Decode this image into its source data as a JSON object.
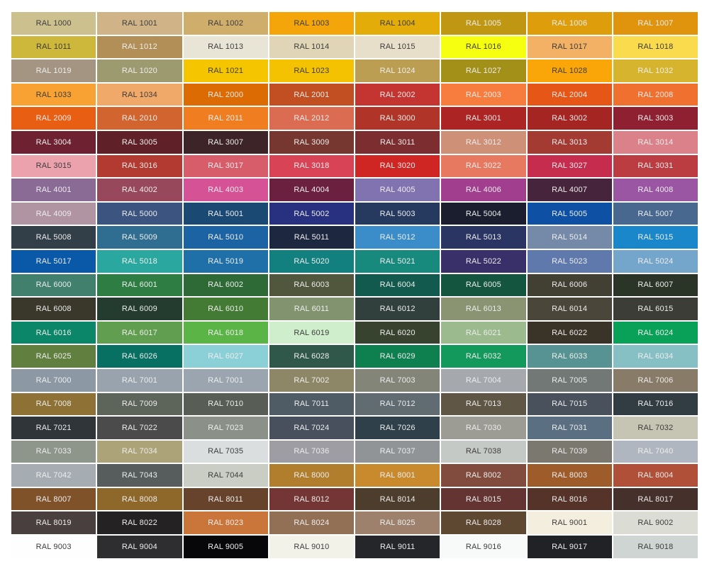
{
  "colors": {
    "background": "#ffffff",
    "dark_text": "#3d3d3d",
    "light_text": "#ededed"
  },
  "chart_data": {
    "type": "table",
    "title": "RAL colour chart",
    "columns": 8,
    "luminance_threshold": 165,
    "light_text_overrides": [
      "1032",
      "6021",
      "6027",
      "6034",
      "7004",
      "7040",
      "7042"
    ],
    "rows": [
      [
        {
          "label": "RAL 1000",
          "hex": "#CBC08E"
        },
        {
          "label": "RAL 1001",
          "hex": "#D0B487"
        },
        {
          "label": "RAL 1002",
          "hex": "#CFAD6B"
        },
        {
          "label": "RAL 1003",
          "hex": "#F3A50A"
        },
        {
          "label": "RAL 1004",
          "hex": "#E3AC09"
        },
        {
          "label": "RAL 1005",
          "hex": "#BF9713"
        },
        {
          "label": "RAL 1006",
          "hex": "#DE9D0B"
        },
        {
          "label": "RAL 1007",
          "hex": "#E0940E"
        }
      ],
      [
        {
          "label": "RAL 1011",
          "hex": "#CDB83C"
        },
        {
          "label": "RAL 1012",
          "hex": "#B18F57"
        },
        {
          "label": "RAL 1013",
          "hex": "#E9E5D6"
        },
        {
          "label": "RAL 1014",
          "hex": "#E0D5B6"
        },
        {
          "label": "RAL 1015",
          "hex": "#E7DFCA"
        },
        {
          "label": "RAL 1016",
          "hex": "#F6FF0F"
        },
        {
          "label": "RAL 1017",
          "hex": "#F2B164"
        },
        {
          "label": "RAL 1018",
          "hex": "#FADB4E"
        }
      ],
      [
        {
          "label": "RAL 1019",
          "hex": "#A39581"
        },
        {
          "label": "RAL 1020",
          "hex": "#9C9A6E"
        },
        {
          "label": "RAL 1021",
          "hex": "#F5C500"
        },
        {
          "label": "RAL 1023",
          "hex": "#F4C200"
        },
        {
          "label": "RAL 1024",
          "hex": "#BB9E52"
        },
        {
          "label": "RAL 1027",
          "hex": "#A29018"
        },
        {
          "label": "RAL 1028",
          "hex": "#FBA608"
        },
        {
          "label": "RAL 1032",
          "hex": "#D6B42D"
        }
      ],
      [
        {
          "label": "RAL 1033",
          "hex": "#F8A233"
        },
        {
          "label": "RAL 1034",
          "hex": "#F0A969"
        },
        {
          "label": "RAL 2000",
          "hex": "#DC6B04"
        },
        {
          "label": "RAL 2001",
          "hex": "#C14F22"
        },
        {
          "label": "RAL 2002",
          "hex": "#C43430"
        },
        {
          "label": "RAL 2003",
          "hex": "#F67D3D"
        },
        {
          "label": "RAL 2004",
          "hex": "#E65617"
        },
        {
          "label": "RAL 2008",
          "hex": "#F0712F"
        }
      ],
      [
        {
          "label": "RAL 2009",
          "hex": "#E85E12"
        },
        {
          "label": "RAL 2010",
          "hex": "#D26430"
        },
        {
          "label": "RAL 2011",
          "hex": "#F07E20"
        },
        {
          "label": "RAL 2012",
          "hex": "#DB6B51"
        },
        {
          "label": "RAL 3000",
          "hex": "#B03528"
        },
        {
          "label": "RAL 3001",
          "hex": "#AC2423"
        },
        {
          "label": "RAL 3002",
          "hex": "#A52523"
        },
        {
          "label": "RAL 3003",
          "hex": "#8F2031"
        }
      ],
      [
        {
          "label": "RAL 3004",
          "hex": "#6E2231"
        },
        {
          "label": "RAL 3005",
          "hex": "#5F2028"
        },
        {
          "label": "RAL 3007",
          "hex": "#3D2428"
        },
        {
          "label": "RAL 3009",
          "hex": "#763730"
        },
        {
          "label": "RAL 3011",
          "hex": "#7C2D2F"
        },
        {
          "label": "RAL 3012",
          "hex": "#CE9077"
        },
        {
          "label": "RAL 3013",
          "hex": "#A43B33"
        },
        {
          "label": "RAL 3014",
          "hex": "#DA8189"
        }
      ],
      [
        {
          "label": "RAL 3015",
          "hex": "#ECA2AD"
        },
        {
          "label": "RAL 3016",
          "hex": "#B23A30"
        },
        {
          "label": "RAL 3017",
          "hex": "#D75D6B"
        },
        {
          "label": "RAL 3018",
          "hex": "#D94356"
        },
        {
          "label": "RAL 3020",
          "hex": "#D02623"
        },
        {
          "label": "RAL 3022",
          "hex": "#E6795F"
        },
        {
          "label": "RAL 3027",
          "hex": "#C52C4D"
        },
        {
          "label": "RAL 3031",
          "hex": "#BB3D42"
        }
      ],
      [
        {
          "label": "RAL 4001",
          "hex": "#8A6B96"
        },
        {
          "label": "RAL 4002",
          "hex": "#97485B"
        },
        {
          "label": "RAL 4003",
          "hex": "#D45295"
        },
        {
          "label": "RAL 4004",
          "hex": "#6B2040"
        },
        {
          "label": "RAL 4005",
          "hex": "#8173B0"
        },
        {
          "label": "RAL 4006",
          "hex": "#A23E8E"
        },
        {
          "label": "RAL 4007",
          "hex": "#46253C"
        },
        {
          "label": "RAL 4008",
          "hex": "#9A55A3"
        }
      ],
      [
        {
          "label": "RAL 4009",
          "hex": "#B094A2"
        },
        {
          "label": "RAL 5000",
          "hex": "#3C5480"
        },
        {
          "label": "RAL 5001",
          "hex": "#1A4A73"
        },
        {
          "label": "RAL 5002",
          "hex": "#28317F"
        },
        {
          "label": "RAL 5003",
          "hex": "#263A60"
        },
        {
          "label": "RAL 5004",
          "hex": "#1A1E2E"
        },
        {
          "label": "RAL 5005",
          "hex": "#0E51A4"
        },
        {
          "label": "RAL 5007",
          "hex": "#49688F"
        }
      ],
      [
        {
          "label": "RAL 5008",
          "hex": "#323E48"
        },
        {
          "label": "RAL 5009",
          "hex": "#2F6E91"
        },
        {
          "label": "RAL 5010",
          "hex": "#1B63A3"
        },
        {
          "label": "RAL 5011",
          "hex": "#1D2840"
        },
        {
          "label": "RAL 5012",
          "hex": "#3A8DC9"
        },
        {
          "label": "RAL 5013",
          "hex": "#2A3563"
        },
        {
          "label": "RAL 5014",
          "hex": "#7589A8"
        },
        {
          "label": "RAL 5015",
          "hex": "#1A87CB"
        }
      ],
      [
        {
          "label": "RAL 5017",
          "hex": "#0A58A8"
        },
        {
          "label": "RAL 5018",
          "hex": "#2AA79E"
        },
        {
          "label": "RAL 5019",
          "hex": "#1F70A8"
        },
        {
          "label": "RAL 5020",
          "hex": "#12807E"
        },
        {
          "label": "RAL 5021",
          "hex": "#17897D"
        },
        {
          "label": "RAL 5022",
          "hex": "#39306A"
        },
        {
          "label": "RAL 5023",
          "hex": "#6079AC"
        },
        {
          "label": "RAL 5024",
          "hex": "#74A6CC"
        }
      ],
      [
        {
          "label": "RAL 6000",
          "hex": "#40806D"
        },
        {
          "label": "RAL 6001",
          "hex": "#2E7E44"
        },
        {
          "label": "RAL 6002",
          "hex": "#2D6A35"
        },
        {
          "label": "RAL 6003",
          "hex": "#50573C"
        },
        {
          "label": "RAL 6004",
          "hex": "#12594E"
        },
        {
          "label": "RAL 6005",
          "hex": "#14553F"
        },
        {
          "label": "RAL 6006",
          "hex": "#423F33"
        },
        {
          "label": "RAL 6007",
          "hex": "#2A3527"
        }
      ],
      [
        {
          "label": "RAL 6008",
          "hex": "#39382B"
        },
        {
          "label": "RAL 6009",
          "hex": "#243B2F"
        },
        {
          "label": "RAL 6010",
          "hex": "#437A34"
        },
        {
          "label": "RAL 6011",
          "hex": "#81946F"
        },
        {
          "label": "RAL 6012",
          "hex": "#32403D"
        },
        {
          "label": "RAL 6013",
          "hex": "#8A9372"
        },
        {
          "label": "RAL 6014",
          "hex": "#4A463A"
        },
        {
          "label": "RAL 6015",
          "hex": "#3B3D36"
        }
      ],
      [
        {
          "label": "RAL 6016",
          "hex": "#0B8668"
        },
        {
          "label": "RAL 6017",
          "hex": "#619E50"
        },
        {
          "label": "RAL 6018",
          "hex": "#5BB446"
        },
        {
          "label": "RAL 6019",
          "hex": "#CFEECB"
        },
        {
          "label": "RAL 6020",
          "hex": "#37422F"
        },
        {
          "label": "RAL 6021",
          "hex": "#9BBA8D"
        },
        {
          "label": "RAL 6022",
          "hex": "#3A3327"
        },
        {
          "label": "RAL 6024",
          "hex": "#09A057"
        }
      ],
      [
        {
          "label": "RAL 6025",
          "hex": "#61803F"
        },
        {
          "label": "RAL 6026",
          "hex": "#086F63"
        },
        {
          "label": "RAL 6027",
          "hex": "#8BD0D6"
        },
        {
          "label": "RAL 6028",
          "hex": "#30584A"
        },
        {
          "label": "RAL 6029",
          "hex": "#0E7F4F"
        },
        {
          "label": "RAL 6032",
          "hex": "#13995C"
        },
        {
          "label": "RAL 6033",
          "hex": "#579392"
        },
        {
          "label": "RAL 6034",
          "hex": "#86C0C5"
        }
      ],
      [
        {
          "label": "RAL 7000",
          "hex": "#8C99A4"
        },
        {
          "label": "RAL 7001",
          "hex": "#99A3AD"
        },
        {
          "label": "RAL 7001",
          "hex": "#9AA5AF"
        },
        {
          "label": "RAL 7002",
          "hex": "#8D8767"
        },
        {
          "label": "RAL 7003",
          "hex": "#838579"
        },
        {
          "label": "RAL 7004",
          "hex": "#A5A8AD"
        },
        {
          "label": "RAL 7005",
          "hex": "#717876"
        },
        {
          "label": "RAL 7006",
          "hex": "#887C68"
        }
      ],
      [
        {
          "label": "RAL 7008",
          "hex": "#8E7135"
        },
        {
          "label": "RAL 7009",
          "hex": "#5D645A"
        },
        {
          "label": "RAL 7010",
          "hex": "#585D56"
        },
        {
          "label": "RAL 7011",
          "hex": "#4F5B65"
        },
        {
          "label": "RAL 7012",
          "hex": "#606B72"
        },
        {
          "label": "RAL 7013",
          "hex": "#5F5645"
        },
        {
          "label": "RAL 7015",
          "hex": "#49515D"
        },
        {
          "label": "RAL 7016",
          "hex": "#323C43"
        }
      ],
      [
        {
          "label": "RAL 7021",
          "hex": "#30353A"
        },
        {
          "label": "RAL 7022",
          "hex": "#4B4B4C"
        },
        {
          "label": "RAL 7023",
          "hex": "#8B9189"
        },
        {
          "label": "RAL 7024",
          "hex": "#47505C"
        },
        {
          "label": "RAL 7026",
          "hex": "#30404A"
        },
        {
          "label": "RAL 7030",
          "hex": "#9D9C94"
        },
        {
          "label": "RAL 7031",
          "hex": "#5A7082"
        },
        {
          "label": "RAL 7032",
          "hex": "#C6C5B4"
        }
      ],
      [
        {
          "label": "RAL 7033",
          "hex": "#8E958A"
        },
        {
          "label": "RAL 7034",
          "hex": "#ADA378"
        },
        {
          "label": "RAL 7035",
          "hex": "#DADEDF"
        },
        {
          "label": "RAL 7036",
          "hex": "#9E9DA3"
        },
        {
          "label": "RAL 7037",
          "hex": "#919496"
        },
        {
          "label": "RAL 7038",
          "hex": "#C5C9C5"
        },
        {
          "label": "RAL 7039",
          "hex": "#7A786F"
        },
        {
          "label": "RAL 7040",
          "hex": "#B0B6C0"
        }
      ],
      [
        {
          "label": "RAL 7042",
          "hex": "#A5ACB2"
        },
        {
          "label": "RAL 7043",
          "hex": "#565D5C"
        },
        {
          "label": "RAL 7044",
          "hex": "#CACDC3"
        },
        {
          "label": "RAL 8000",
          "hex": "#B07E2C"
        },
        {
          "label": "RAL 8001",
          "hex": "#C98A2E"
        },
        {
          "label": "RAL 8002",
          "hex": "#814C3E"
        },
        {
          "label": "RAL 8003",
          "hex": "#9E5C2B"
        },
        {
          "label": "RAL 8004",
          "hex": "#B05038"
        }
      ],
      [
        {
          "label": "RAL 8007",
          "hex": "#7F5229"
        },
        {
          "label": "RAL 8008",
          "hex": "#8E672B"
        },
        {
          "label": "RAL 8011",
          "hex": "#67432C"
        },
        {
          "label": "RAL 8012",
          "hex": "#743634"
        },
        {
          "label": "RAL 8014",
          "hex": "#4D3D2C"
        },
        {
          "label": "RAL 8015",
          "hex": "#633432"
        },
        {
          "label": "RAL 8016",
          "hex": "#553329"
        },
        {
          "label": "RAL 8017",
          "hex": "#45302C"
        }
      ],
      [
        {
          "label": "RAL 8019",
          "hex": "#4A3F3F"
        },
        {
          "label": "RAL 8022",
          "hex": "#252223"
        },
        {
          "label": "RAL 8023",
          "hex": "#CA753A"
        },
        {
          "label": "RAL 8024",
          "hex": "#927056"
        },
        {
          "label": "RAL 8025",
          "hex": "#9D816D"
        },
        {
          "label": "RAL 8028",
          "hex": "#5F4832"
        },
        {
          "label": "RAL 9001",
          "hex": "#F3EEDE"
        },
        {
          "label": "RAL 9002",
          "hex": "#DBDDD5"
        }
      ],
      [
        {
          "label": "RAL 9003",
          "hex": "#FEFEFE"
        },
        {
          "label": "RAL 9004",
          "hex": "#2E2E30"
        },
        {
          "label": "RAL 9005",
          "hex": "#070709"
        },
        {
          "label": "RAL 9010",
          "hex": "#F3F2E9"
        },
        {
          "label": "RAL 9011",
          "hex": "#24262A"
        },
        {
          "label": "RAL 9016",
          "hex": "#F8FAF9"
        },
        {
          "label": "RAL 9017",
          "hex": "#202226"
        },
        {
          "label": "RAL 9018",
          "hex": "#CFD5D2"
        }
      ]
    ]
  }
}
